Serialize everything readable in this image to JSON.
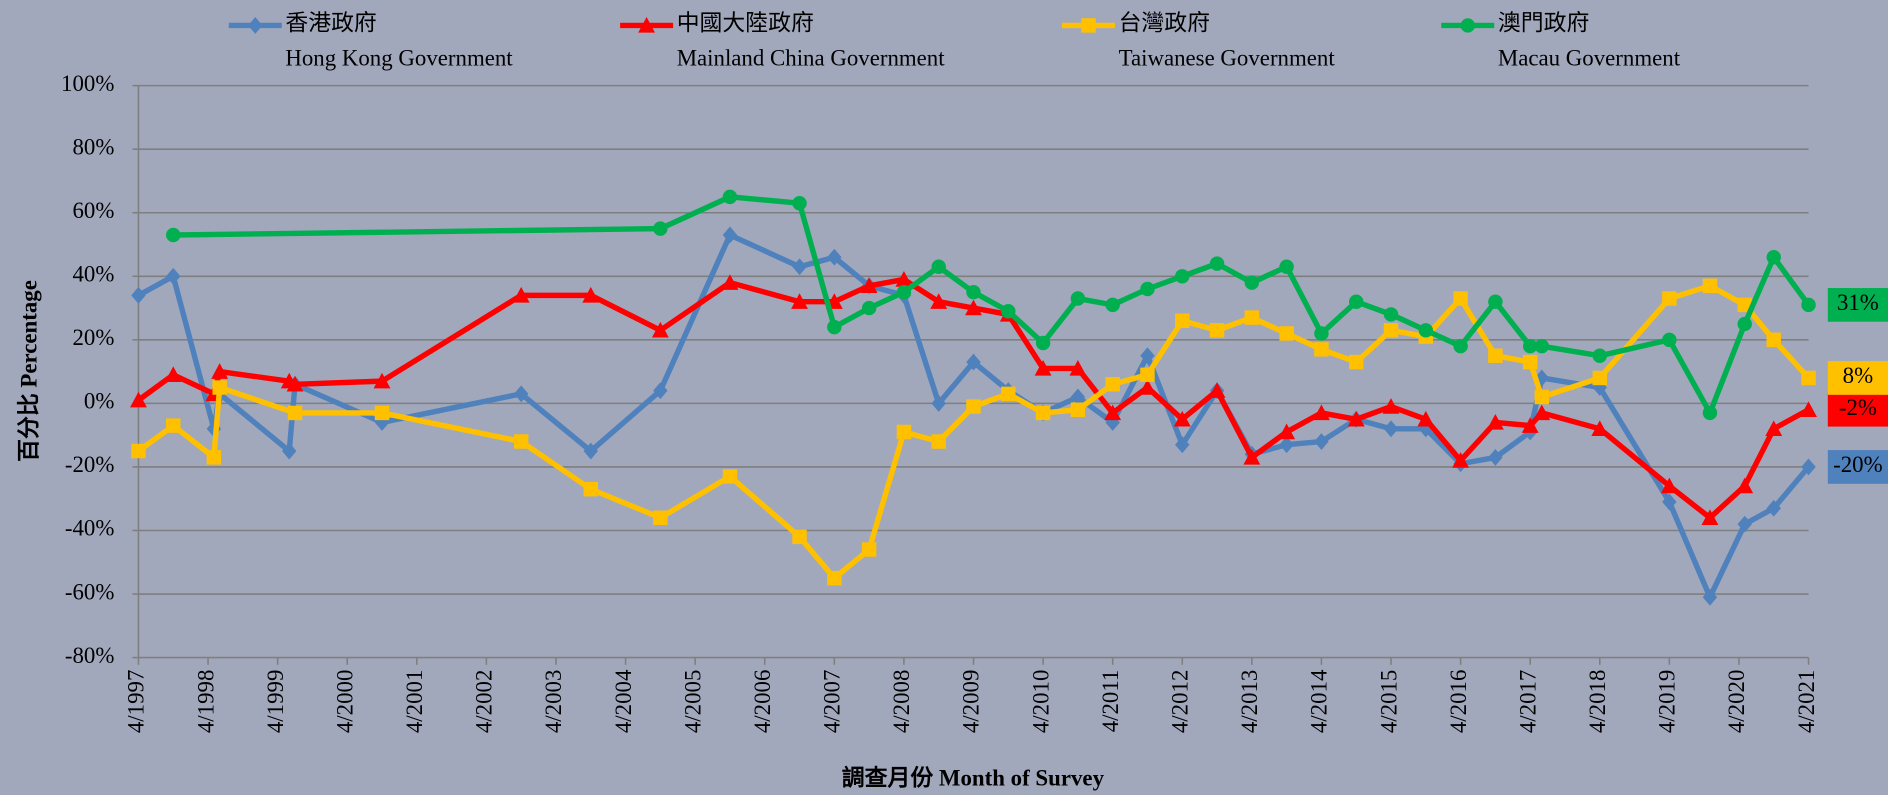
{
  "chart_data": {
    "type": "line",
    "y_label": "百分比 Percentage",
    "x_label": "調查月份 Month of Survey",
    "xlim": [
      "4/1997",
      "4/2021"
    ],
    "xticks": [
      "4/1997",
      "4/1998",
      "4/1999",
      "4/2000",
      "4/2001",
      "4/2002",
      "4/2003",
      "4/2004",
      "4/2005",
      "4/2006",
      "4/2007",
      "4/2008",
      "4/2009",
      "4/2010",
      "4/2011",
      "4/2012",
      "4/2013",
      "4/2014",
      "4/2015",
      "4/2016",
      "4/2017",
      "4/2018",
      "4/2019",
      "4/2020",
      "4/2021"
    ],
    "ylim": [
      -80,
      100
    ],
    "yticks": [
      {
        "value": -80,
        "label": "-80%"
      },
      {
        "value": -60,
        "label": "-60%"
      },
      {
        "value": -40,
        "label": "-40%"
      },
      {
        "value": -20,
        "label": "-20%"
      },
      {
        "value": 0,
        "label": "0%"
      },
      {
        "value": 20,
        "label": "20%"
      },
      {
        "value": 40,
        "label": "40%"
      },
      {
        "value": 60,
        "label": "60%"
      },
      {
        "value": 80,
        "label": "80%"
      },
      {
        "value": 100,
        "label": "100%"
      }
    ],
    "grid": true,
    "series": [
      {
        "name": "香港政府",
        "name_en": "Hong Kong Government",
        "color": "#4f81bd",
        "marker": "diamond",
        "label_text_color": "#ffffff",
        "x": [
          "4/1997",
          "10/1997",
          "5/1998",
          "6/1998",
          "6/1999",
          "7/1999",
          "10/2000",
          "10/2002",
          "10/2003",
          "10/2004",
          "10/2005",
          "10/2006",
          "4/2007",
          "10/2007",
          "4/2008",
          "10/2008",
          "4/2009",
          "10/2009",
          "4/2010",
          "10/2010",
          "4/2011",
          "10/2011",
          "4/2012",
          "10/2012",
          "4/2013",
          "10/2013",
          "4/2014",
          "10/2014",
          "4/2015",
          "10/2015",
          "4/2016",
          "10/2016",
          "4/2017",
          "6/2017",
          "4/2018",
          "4/2019",
          "11/2019",
          "5/2020",
          "10/2020",
          "4/2021"
        ],
        "values": [
          34,
          40,
          -8,
          3,
          -15,
          6,
          -6,
          3,
          -15,
          4,
          53,
          43,
          46,
          37,
          34,
          0,
          13,
          4,
          -3,
          2,
          -6,
          15,
          -13,
          4,
          -16,
          -13,
          -12,
          -5,
          -8,
          -8,
          -19,
          -17,
          -9,
          8,
          5,
          -31,
          -61,
          -38,
          -33,
          -20
        ],
        "value_labels": [
          null,
          null,
          null,
          null,
          null,
          null,
          null,
          null,
          null,
          null,
          null,
          null,
          null,
          null,
          null,
          null,
          null,
          null,
          null,
          null,
          null,
          null,
          null,
          null,
          null,
          null,
          null,
          null,
          null,
          null,
          null,
          null,
          null,
          null,
          null,
          null,
          null,
          null,
          null,
          "-20%"
        ]
      },
      {
        "name": "中國大陸政府",
        "name_en": "Mainland China Government",
        "color": "#ff0000",
        "marker": "triangle",
        "label_text_color": "#ffffff",
        "x": [
          "4/1997",
          "10/1997",
          "5/1998",
          "6/1998",
          "6/1999",
          "7/1999",
          "10/2000",
          "10/2002",
          "10/2003",
          "10/2004",
          "10/2005",
          "10/2006",
          "4/2007",
          "10/2007",
          "4/2008",
          "10/2008",
          "4/2009",
          "10/2009",
          "4/2010",
          "10/2010",
          "4/2011",
          "10/2011",
          "4/2012",
          "10/2012",
          "4/2013",
          "10/2013",
          "4/2014",
          "10/2014",
          "4/2015",
          "10/2015",
          "4/2016",
          "10/2016",
          "4/2017",
          "6/2017",
          "4/2018",
          "4/2019",
          "11/2019",
          "5/2020",
          "10/2020",
          "4/2021"
        ],
        "values": [
          1,
          9,
          3,
          10,
          7,
          6,
          7,
          34,
          34,
          23,
          38,
          32,
          32,
          37,
          39,
          32,
          30,
          28,
          11,
          11,
          -3,
          5,
          -5,
          4,
          -17,
          -9,
          -3,
          -5,
          -1,
          -5,
          -18,
          -6,
          -7,
          -3,
          -8,
          -26,
          -36,
          -26,
          -8,
          -2
        ],
        "value_labels": [
          null,
          null,
          null,
          null,
          null,
          null,
          null,
          null,
          null,
          null,
          null,
          null,
          null,
          null,
          null,
          null,
          null,
          null,
          null,
          null,
          null,
          null,
          null,
          null,
          null,
          null,
          null,
          null,
          null,
          null,
          null,
          null,
          null,
          null,
          null,
          null,
          null,
          null,
          null,
          "-2%"
        ]
      },
      {
        "name": "台灣政府",
        "name_en": "Taiwanese Government",
        "color": "#ffc000",
        "marker": "square",
        "label_text_color": "#000000",
        "x": [
          "4/1997",
          "10/1997",
          "5/1998",
          "6/1998",
          "7/1999",
          "10/2000",
          "10/2002",
          "10/2003",
          "10/2004",
          "10/2005",
          "10/2006",
          "4/2007",
          "10/2007",
          "4/2008",
          "10/2008",
          "4/2009",
          "10/2009",
          "4/2010",
          "10/2010",
          "4/2011",
          "10/2011",
          "4/2012",
          "10/2012",
          "4/2013",
          "10/2013",
          "4/2014",
          "10/2014",
          "4/2015",
          "10/2015",
          "4/2016",
          "10/2016",
          "4/2017",
          "6/2017",
          "4/2018",
          "4/2019",
          "11/2019",
          "5/2020",
          "10/2020",
          "4/2021"
        ],
        "values": [
          -15,
          -7,
          -17,
          5,
          -3,
          -3,
          -12,
          -27,
          -36,
          -23,
          -42,
          -55,
          -46,
          -9,
          -12,
          -1,
          3,
          -3,
          -2,
          6,
          9,
          26,
          23,
          27,
          22,
          17,
          13,
          23,
          21,
          33,
          15,
          13,
          2,
          8,
          33,
          37,
          31,
          20,
          8
        ],
        "value_labels": [
          null,
          null,
          null,
          null,
          null,
          null,
          null,
          null,
          null,
          null,
          null,
          null,
          null,
          null,
          null,
          null,
          null,
          null,
          null,
          null,
          null,
          null,
          null,
          null,
          null,
          null,
          null,
          null,
          null,
          null,
          null,
          null,
          null,
          null,
          null,
          null,
          null,
          null,
          "8%"
        ]
      },
      {
        "name": "澳門政府",
        "name_en": "Macau Government",
        "color": "#00b050",
        "marker": "circle",
        "label_text_color": "#000000",
        "x": [
          "10/1997",
          "10/2004",
          "10/2005",
          "10/2006",
          "4/2007",
          "10/2007",
          "4/2008",
          "10/2008",
          "4/2009",
          "10/2009",
          "4/2010",
          "10/2010",
          "4/2011",
          "10/2011",
          "4/2012",
          "10/2012",
          "4/2013",
          "10/2013",
          "4/2014",
          "10/2014",
          "4/2015",
          "10/2015",
          "4/2016",
          "10/2016",
          "4/2017",
          "6/2017",
          "4/2018",
          "4/2019",
          "11/2019",
          "5/2020",
          "10/2020",
          "4/2021"
        ],
        "values": [
          53,
          55,
          65,
          63,
          24,
          30,
          35,
          43,
          35,
          29,
          19,
          33,
          31,
          36,
          40,
          44,
          38,
          43,
          22,
          32,
          28,
          23,
          18,
          32,
          18,
          18,
          15,
          20,
          -3,
          25,
          46,
          31
        ],
        "value_labels": [
          null,
          null,
          null,
          null,
          null,
          null,
          null,
          null,
          null,
          null,
          null,
          null,
          null,
          null,
          null,
          null,
          null,
          null,
          null,
          null,
          null,
          null,
          null,
          null,
          null,
          null,
          null,
          null,
          null,
          null,
          null,
          "31%"
        ]
      }
    ]
  }
}
